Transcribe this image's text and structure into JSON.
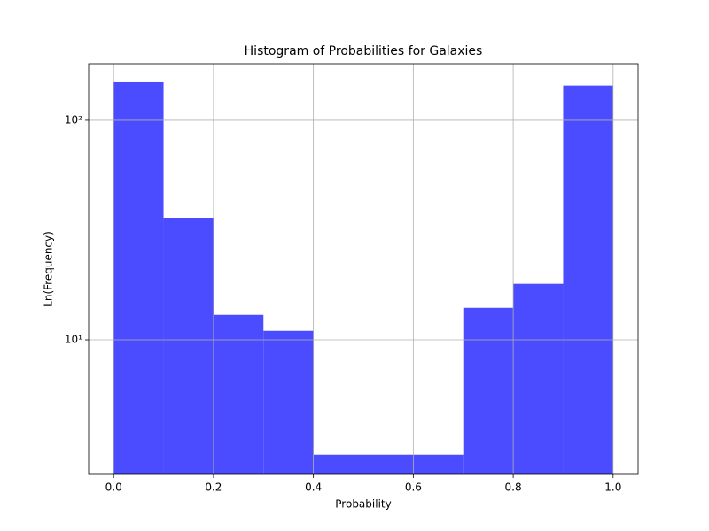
{
  "chart_data": {
    "type": "histogram",
    "title": "Histogram of Probabilities for Galaxies",
    "xlabel": "Probability",
    "ylabel": "Ln(Frequency)",
    "bins": [
      0,
      0.1,
      0.2,
      0.3,
      0.4,
      0.5,
      0.6,
      0.7,
      0.8,
      0.9,
      1.0
    ],
    "counts": [
      149,
      36,
      13,
      11,
      3,
      3,
      3,
      14,
      18,
      144
    ],
    "color": "#4b4bff",
    "xlim": [
      -0.05,
      1.05
    ],
    "xticks": [
      {
        "value": 0,
        "label": "0.0"
      },
      0.2,
      0.4,
      0.6,
      0.8,
      {
        "value": 1,
        "label": "1.0"
      }
    ],
    "ylim": [
      2.44,
      181
    ],
    "yscale": "log",
    "yticks": [
      {
        "value": 10,
        "label": "10¹"
      },
      {
        "value": 100,
        "label": "10²"
      }
    ],
    "grid": true
  }
}
